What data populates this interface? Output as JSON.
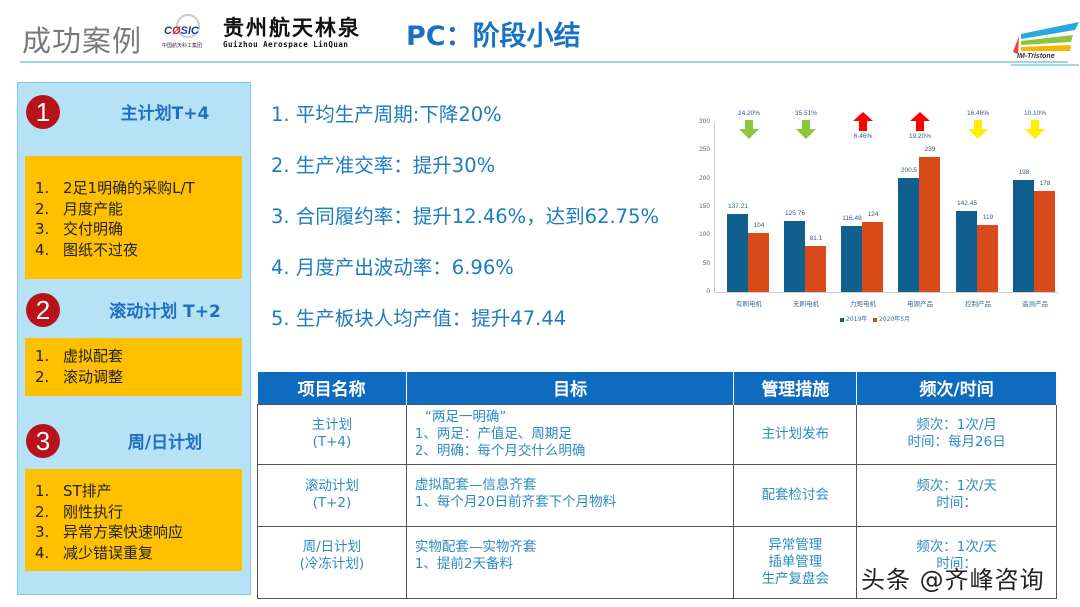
{
  "header": {
    "section_title": "成功案例",
    "casic_logo_text": "CASIC",
    "casic_sub": "中国航天科工集团",
    "company_cn": "贵州航天林泉",
    "company_en": "Guizhou Aerospace LinQuan",
    "page_title": "PC：阶段小结",
    "brand_logo_text": "IM-Tristone"
  },
  "left_panel": {
    "sections": [
      {
        "number": "1",
        "title": "主计划T+4",
        "items": [
          {
            "n": "1.",
            "text": "2足1明确的采购L/T"
          },
          {
            "n": "2.",
            "text": "月度产能"
          },
          {
            "n": "3.",
            "text": "交付明确"
          },
          {
            "n": "4.",
            "text": "图纸不过夜"
          }
        ]
      },
      {
        "number": "2",
        "title": "滚动计划 T+2",
        "items": [
          {
            "n": "1.",
            "text": "虚拟配套"
          },
          {
            "n": "2.",
            "text": "滚动调整"
          }
        ]
      },
      {
        "number": "3",
        "title": "周/日计划",
        "items": [
          {
            "n": "1.",
            "text": "ST排产"
          },
          {
            "n": "2.",
            "text": "刚性执行"
          },
          {
            "n": "3.",
            "text": "异常方案快速响应"
          },
          {
            "n": "4.",
            "text": "减少错误重复"
          }
        ]
      }
    ]
  },
  "kpis": [
    "1. 平均生产周期:下降20%",
    "2. 生产准交率：提升30%",
    "3. 合同履约率：提升12.46%，达到62.75%",
    "4. 月度产出波动率：6.96%",
    "5. 生产板块人均产值：提升47.44"
  ],
  "chart_data": {
    "type": "bar",
    "title": "",
    "xlabel": "",
    "ylabel": "",
    "ylim": [
      0,
      300
    ],
    "yticks": [
      0,
      50,
      100,
      150,
      200,
      250,
      300
    ],
    "grid": false,
    "legend_position": "bottom",
    "categories": [
      "有刷电机",
      "无刷电机",
      "力矩电机",
      "电源产品",
      "控制产品",
      "遥测产品"
    ],
    "series": [
      {
        "name": "2019年",
        "color": "#0f5f8f",
        "values": [
          137.21,
          125.76,
          116.48,
          200.5,
          142.45,
          198
        ]
      },
      {
        "name": "2020年5月",
        "color": "#d94a1a",
        "values": [
          104,
          81.1,
          124,
          239,
          119,
          178
        ]
      }
    ],
    "annotations": [
      {
        "category": "有刷电机",
        "change": "24.20%",
        "direction": "down",
        "color": "#8cc63f"
      },
      {
        "category": "无刷电机",
        "change": "35.51%",
        "direction": "down",
        "color": "#8cc63f"
      },
      {
        "category": "力矩电机",
        "change": "6.46%",
        "direction": "up",
        "color": "#ff0000"
      },
      {
        "category": "电源产品",
        "change": "19.20%",
        "direction": "up",
        "color": "#ff0000"
      },
      {
        "category": "控制产品",
        "change": "16.46%",
        "direction": "down",
        "color": "#ffee00"
      },
      {
        "category": "遥测产品",
        "change": "10.10%",
        "direction": "down",
        "color": "#ffee00"
      }
    ]
  },
  "table": {
    "headers": [
      "项目名称",
      "目标",
      "管理措施",
      "频次/时间"
    ],
    "rows": [
      {
        "name": [
          "主计划",
          "(T+4)"
        ],
        "goal": [
          "“两足一明确”",
          "1、两足：产值足、周期足",
          "2、明确：每个月交什么明确"
        ],
        "measure": [
          "主计划发布"
        ],
        "freq": [
          "频次：1次/月",
          "时间：每月26日"
        ]
      },
      {
        "name": [
          "滚动计划",
          "(T+2)"
        ],
        "goal": [
          "虚拟配套—信息齐套",
          "1、每个月20日前齐套下个月物料"
        ],
        "measure": [
          "配套检讨会"
        ],
        "freq": [
          "频次：1次/天",
          "时间："
        ]
      },
      {
        "name": [
          "周/日计划",
          "(冷冻计划)"
        ],
        "goal": [
          "实物配套—实物齐套",
          "1、提前2天备料"
        ],
        "measure": [
          "异常管理",
          "插单管理",
          "生产复盘会"
        ],
        "freq": [
          "频次：1次/天",
          "时间："
        ]
      }
    ]
  },
  "watermark": "头条 @齐峰咨询"
}
